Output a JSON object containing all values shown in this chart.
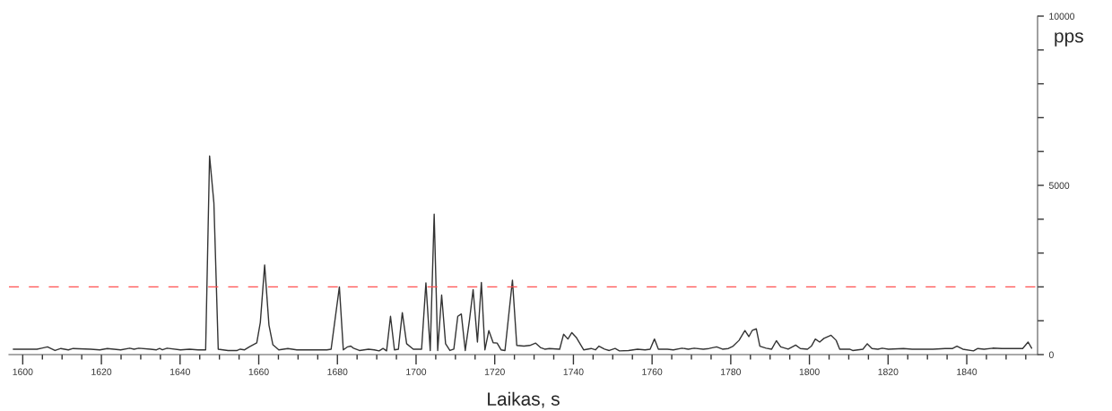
{
  "chart_data": {
    "type": "line",
    "xlabel": "Laikas, s",
    "ylabel": "pps",
    "series": [
      {
        "color": "#333333",
        "x": [
          1597.6,
          1603.6,
          1604.8,
          1606.3,
          1608.2,
          1609.7,
          1611.6,
          1612.8,
          1617.3,
          1619.6,
          1621.5,
          1624.9,
          1627.2,
          1628.3,
          1629.5,
          1632.5,
          1634.0,
          1634.8,
          1635.5,
          1636.7,
          1640.1,
          1642.4,
          1644.6,
          1646.5,
          1647.5,
          1648.6,
          1649.7,
          1652.2,
          1654.5,
          1655.3,
          1656.4,
          1657.6,
          1659.5,
          1660.4,
          1661.5,
          1662.6,
          1663.6,
          1665.1,
          1667.4,
          1669.7,
          1673.5,
          1677.3,
          1678.4,
          1680.5,
          1681.5,
          1682.6,
          1683.4,
          1684.1,
          1685.6,
          1687.9,
          1689.4,
          1690.6,
          1691.6,
          1692.5,
          1693.5,
          1694.5,
          1695.5,
          1696.5,
          1697.6,
          1699.3,
          1700.5,
          1701.4,
          1702.5,
          1703.6,
          1704.6,
          1705.5,
          1706.5,
          1707.5,
          1708.6,
          1709.6,
          1710.6,
          1711.5,
          1712.5,
          1713.6,
          1714.5,
          1715.6,
          1716.6,
          1717.5,
          1718.5,
          1719.6,
          1720.6,
          1721.6,
          1722.6,
          1724.5,
          1725.6,
          1727.4,
          1728.9,
          1730.4,
          1731.6,
          1732.7,
          1733.9,
          1736.5,
          1737.5,
          1738.6,
          1739.6,
          1740.7,
          1742.6,
          1744.5,
          1745.6,
          1746.5,
          1747.9,
          1749.1,
          1750.6,
          1751.7,
          1754.0,
          1756.3,
          1758.2,
          1759.5,
          1760.6,
          1761.6,
          1763.9,
          1765.4,
          1767.6,
          1769.2,
          1770.7,
          1773.0,
          1774.5,
          1776.4,
          1777.9,
          1779.4,
          1780.6,
          1782.1,
          1783.6,
          1784.6,
          1785.5,
          1786.5,
          1787.4,
          1789.0,
          1790.4,
          1791.6,
          1792.7,
          1794.6,
          1796.5,
          1797.7,
          1799.5,
          1800.5,
          1801.5,
          1802.6,
          1803.7,
          1805.5,
          1806.8,
          1807.7,
          1810.2,
          1811.0,
          1813.6,
          1814.7,
          1815.9,
          1817.4,
          1818.5,
          1820.1,
          1823.9,
          1826.1,
          1831.4,
          1834.5,
          1836.4,
          1837.5,
          1839.0,
          1841.7,
          1842.8,
          1844.4,
          1846.6,
          1848.9,
          1852.7,
          1854.2,
          1855.6,
          1856.5
        ],
        "values": [
          160,
          160,
          190,
          230,
          120,
          180,
          140,
          180,
          160,
          140,
          180,
          140,
          190,
          160,
          190,
          160,
          140,
          180,
          140,
          190,
          140,
          160,
          140,
          140,
          5870,
          4480,
          160,
          120,
          120,
          160,
          140,
          230,
          350,
          950,
          2650,
          870,
          290,
          140,
          180,
          140,
          140,
          140,
          160,
          2000,
          140,
          230,
          250,
          190,
          120,
          160,
          140,
          110,
          180,
          110,
          1130,
          140,
          160,
          1240,
          320,
          160,
          160,
          160,
          2120,
          120,
          4150,
          120,
          1760,
          320,
          120,
          160,
          1130,
          1200,
          120,
          1040,
          1920,
          370,
          2130,
          140,
          710,
          350,
          340,
          140,
          120,
          2200,
          270,
          250,
          270,
          340,
          210,
          160,
          180,
          160,
          600,
          460,
          650,
          510,
          140,
          180,
          140,
          250,
          160,
          120,
          180,
          110,
          120,
          160,
          140,
          160,
          460,
          160,
          160,
          140,
          190,
          160,
          190,
          160,
          180,
          230,
          160,
          180,
          250,
          420,
          710,
          530,
          720,
          760,
          250,
          190,
          160,
          410,
          230,
          160,
          280,
          180,
          160,
          250,
          460,
          370,
          480,
          570,
          420,
          160,
          160,
          120,
          160,
          320,
          180,
          160,
          190,
          160,
          180,
          160,
          160,
          180,
          180,
          250,
          160,
          110,
          180,
          160,
          190,
          180,
          180,
          180,
          370,
          190
        ]
      }
    ],
    "xlim": [
      1596.5,
      1858
    ],
    "xticks": [
      1600,
      {
        "value": 1605,
        "label": null
      },
      {
        "value": 1610,
        "label": null
      },
      {
        "value": 1615,
        "label": null
      },
      1620,
      {
        "value": 1625,
        "label": null
      },
      {
        "value": 1630,
        "label": null
      },
      {
        "value": 1635,
        "label": null
      },
      1640,
      {
        "value": 1645,
        "label": null
      },
      {
        "value": 1650,
        "label": null
      },
      {
        "value": 1655,
        "label": null
      },
      1660,
      {
        "value": 1665,
        "label": null
      },
      {
        "value": 1670,
        "label": null
      },
      {
        "value": 1675,
        "label": null
      },
      1680,
      {
        "value": 1685,
        "label": null
      },
      {
        "value": 1690,
        "label": null
      },
      {
        "value": 1695,
        "label": null
      },
      1700,
      {
        "value": 1705,
        "label": null
      },
      {
        "value": 1710,
        "label": null
      },
      {
        "value": 1715,
        "label": null
      },
      1720,
      {
        "value": 1725,
        "label": null
      },
      {
        "value": 1730,
        "label": null
      },
      {
        "value": 1735,
        "label": null
      },
      1740,
      {
        "value": 1745,
        "label": null
      },
      {
        "value": 1750,
        "label": null
      },
      {
        "value": 1755,
        "label": null
      },
      1760,
      {
        "value": 1765,
        "label": null
      },
      {
        "value": 1770,
        "label": null
      },
      {
        "value": 1775,
        "label": null
      },
      1780,
      {
        "value": 1785,
        "label": null
      },
      {
        "value": 1790,
        "label": null
      },
      {
        "value": 1795,
        "label": null
      },
      1800,
      {
        "value": 1805,
        "label": null
      },
      {
        "value": 1810,
        "label": null
      },
      {
        "value": 1815,
        "label": null
      },
      1820,
      {
        "value": 1825,
        "label": null
      },
      {
        "value": 1830,
        "label": null
      },
      {
        "value": 1835,
        "label": null
      },
      1840,
      {
        "value": 1845,
        "label": null
      },
      {
        "value": 1850,
        "label": null
      },
      {
        "value": 1855,
        "label": null
      }
    ],
    "ylim": [
      0,
      10000
    ],
    "yticks": [
      0,
      {
        "value": 1000,
        "label": null
      },
      {
        "value": 2000,
        "label": null
      },
      {
        "value": 3000,
        "label": null
      },
      {
        "value": 4000,
        "label": null
      },
      5000,
      {
        "value": 6000,
        "label": null
      },
      {
        "value": 7000,
        "label": null
      },
      {
        "value": 8000,
        "label": null
      },
      {
        "value": 9000,
        "label": null
      },
      10000
    ],
    "ref_lines": [
      {
        "axis": "y",
        "value": 2000,
        "color": "#ff5050",
        "line_style": "dashed"
      }
    ],
    "grid": false,
    "legend": false,
    "marker": "none",
    "line_style": "solid"
  }
}
